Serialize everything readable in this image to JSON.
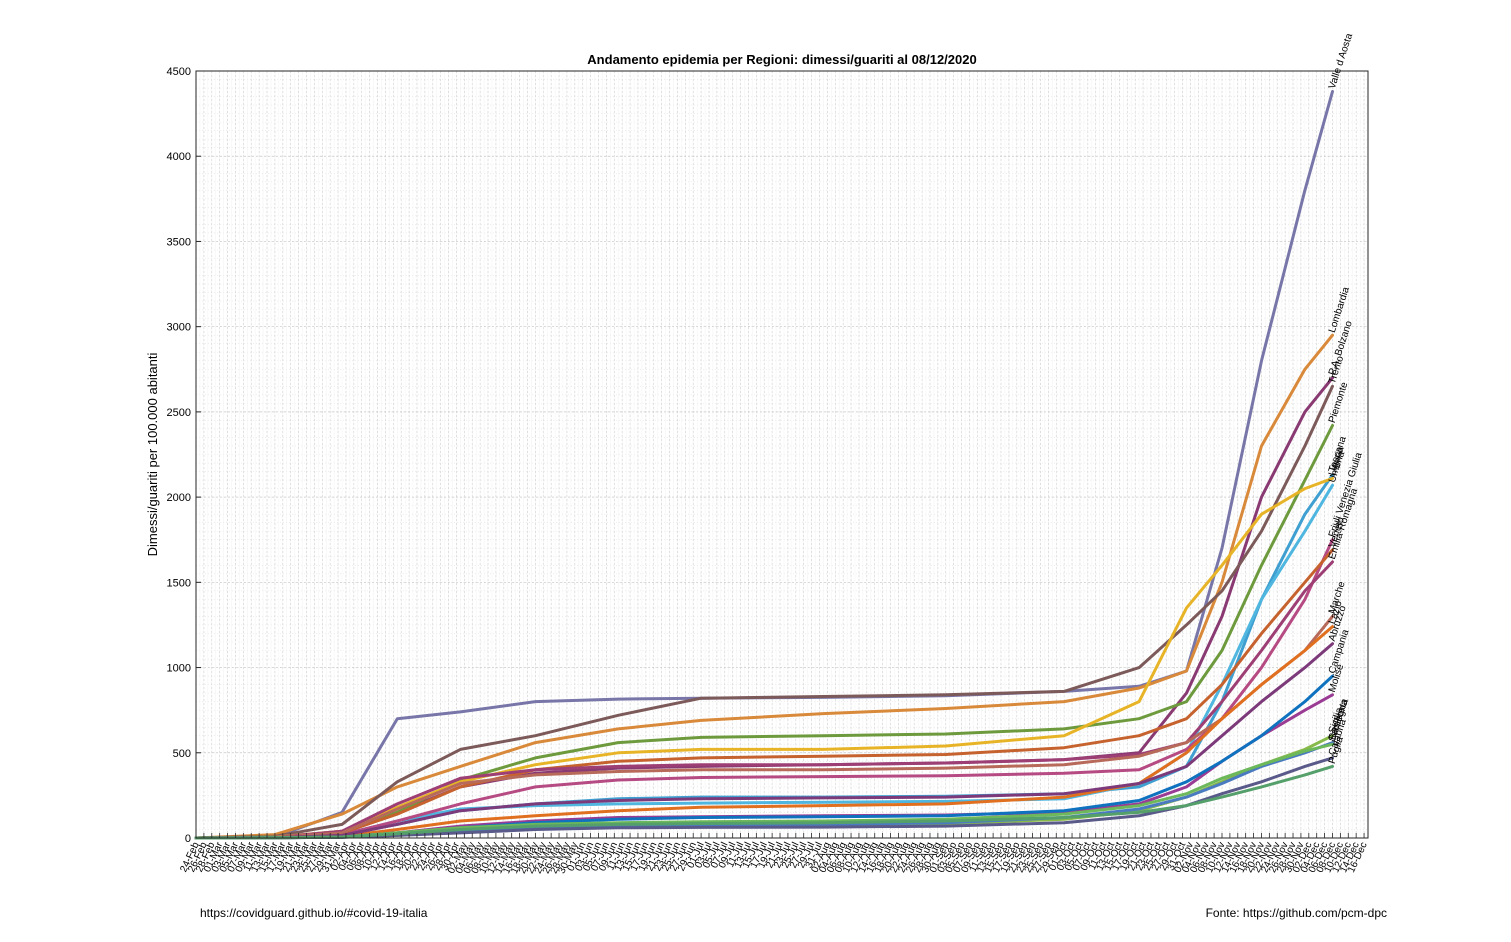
{
  "chart_data": {
    "type": "line",
    "title": "Andamento epidemia per Regioni: dimessi/guariti al 08/12/2020",
    "ylabel": "Dimessi/guariti per 100.000 abitanti",
    "xlabel": "",
    "ylim": [
      0,
      4500
    ],
    "yticks": [
      0,
      500,
      1000,
      1500,
      2000,
      2500,
      3000,
      3500,
      4000,
      4500
    ],
    "xlim": [
      "2020-02-24",
      "2020-12-17"
    ],
    "x_tick_format": "dd-Mmm",
    "x_tick_step_days": 2,
    "grid": true,
    "minor_grid": true,
    "x": [
      "2020-02-24",
      "2020-03-15",
      "2020-04-01",
      "2020-04-15",
      "2020-05-01",
      "2020-05-20",
      "2020-06-10",
      "2020-07-01",
      "2020-08-01",
      "2020-09-01",
      "2020-10-01",
      "2020-10-20",
      "2020-11-01",
      "2020-11-10",
      "2020-11-20",
      "2020-12-01",
      "2020-12-08"
    ],
    "series": [
      {
        "name": "Valle d Aosta",
        "color": "#7876a8",
        "values": [
          0,
          5,
          150,
          700,
          740,
          800,
          815,
          820,
          825,
          835,
          860,
          890,
          980,
          1700,
          2800,
          3800,
          4380
        ]
      },
      {
        "name": "Lombardia",
        "color": "#d9893a",
        "values": [
          0,
          20,
          140,
          300,
          420,
          560,
          640,
          690,
          730,
          760,
          800,
          880,
          980,
          1500,
          2300,
          2750,
          2950
        ]
      },
      {
        "name": "P.A. Bolzano",
        "color": "#8a3a72",
        "values": [
          0,
          5,
          40,
          150,
          300,
          380,
          410,
          420,
          430,
          440,
          460,
          500,
          850,
          1300,
          2000,
          2500,
          2700
        ]
      },
      {
        "name": "Trento",
        "color": "#7d5a5a",
        "values": [
          0,
          10,
          80,
          330,
          520,
          600,
          720,
          820,
          830,
          840,
          860,
          1000,
          1250,
          1450,
          1800,
          2300,
          2650
        ]
      },
      {
        "name": "Piemonte",
        "color": "#6e9a3e",
        "values": [
          0,
          5,
          30,
          150,
          340,
          470,
          560,
          590,
          600,
          610,
          640,
          700,
          800,
          1100,
          1600,
          2100,
          2420
        ]
      },
      {
        "name": "Toscana",
        "color": "#3f9fd0",
        "values": [
          0,
          3,
          20,
          80,
          160,
          200,
          230,
          240,
          240,
          245,
          260,
          300,
          420,
          800,
          1400,
          1900,
          2130
        ]
      },
      {
        "name": "Liguria",
        "color": "#e8b427",
        "values": [
          0,
          5,
          40,
          180,
          330,
          430,
          500,
          520,
          520,
          540,
          600,
          800,
          1350,
          1600,
          1900,
          2050,
          2110
        ]
      },
      {
        "name": "Umbria",
        "color": "#4fb6e0",
        "values": [
          0,
          3,
          20,
          100,
          170,
          190,
          200,
          205,
          210,
          215,
          230,
          320,
          500,
          900,
          1400,
          1800,
          2070
        ]
      },
      {
        "name": "Friuli Venezia Giulia",
        "color": "#b64a83",
        "values": [
          0,
          3,
          20,
          100,
          200,
          300,
          340,
          355,
          360,
          365,
          380,
          400,
          520,
          700,
          1000,
          1400,
          1750
        ]
      },
      {
        "name": "Veneto",
        "color": "#c6622e",
        "values": [
          0,
          3,
          30,
          140,
          300,
          400,
          450,
          470,
          480,
          490,
          530,
          600,
          700,
          900,
          1200,
          1500,
          1690
        ]
      },
      {
        "name": "Emilia-Romagna",
        "color": "#9d3e75",
        "values": [
          0,
          3,
          40,
          200,
          350,
          400,
          420,
          430,
          430,
          440,
          460,
          490,
          560,
          800,
          1100,
          1450,
          1620
        ]
      },
      {
        "name": "Marche",
        "color": "#b86a5a",
        "values": [
          0,
          3,
          30,
          170,
          320,
          370,
          390,
          400,
          400,
          410,
          430,
          480,
          560,
          700,
          900,
          1100,
          1300
        ]
      },
      {
        "name": "Lazio",
        "color": "#e0701f",
        "values": [
          0,
          2,
          10,
          50,
          100,
          130,
          160,
          180,
          190,
          200,
          240,
          320,
          500,
          700,
          900,
          1100,
          1240
        ]
      },
      {
        "name": "Abruzzo",
        "color": "#7c3a7a",
        "values": [
          0,
          2,
          15,
          80,
          160,
          200,
          220,
          230,
          235,
          240,
          260,
          320,
          420,
          600,
          800,
          1000,
          1140
        ]
      },
      {
        "name": "Molise",
        "color": "#9a3c93",
        "values": [
          0,
          1,
          5,
          30,
          70,
          100,
          120,
          125,
          130,
          135,
          150,
          200,
          300,
          450,
          600,
          750,
          840
        ]
      },
      {
        "name": "Campania",
        "color": "#0f72bf",
        "values": [
          0,
          1,
          5,
          30,
          60,
          90,
          110,
          120,
          125,
          130,
          160,
          220,
          330,
          450,
          600,
          800,
          950
        ]
      },
      {
        "name": "Sicilia",
        "color": "#88b94b",
        "values": [
          0,
          1,
          4,
          15,
          35,
          55,
          70,
          75,
          80,
          85,
          110,
          160,
          240,
          330,
          430,
          520,
          600
        ]
      },
      {
        "name": "Basilicata",
        "color": "#4a7ac0",
        "values": [
          0,
          1,
          4,
          20,
          40,
          60,
          70,
          75,
          80,
          90,
          120,
          170,
          240,
          320,
          420,
          500,
          560
        ]
      },
      {
        "name": "Sardegna",
        "color": "#6cb85a",
        "values": [
          0,
          1,
          6,
          30,
          60,
          80,
          90,
          95,
          100,
          110,
          140,
          190,
          260,
          350,
          430,
          510,
          550
        ]
      },
      {
        "name": "Calabria",
        "color": "#5a5a8a",
        "values": [
          0,
          1,
          4,
          15,
          30,
          50,
          60,
          62,
          64,
          70,
          90,
          130,
          190,
          260,
          330,
          420,
          470
        ]
      },
      {
        "name": "Puglia",
        "color": "#55a06a",
        "values": [
          0,
          1,
          5,
          25,
          50,
          70,
          80,
          85,
          90,
          100,
          120,
          150,
          190,
          240,
          300,
          370,
          420
        ]
      }
    ]
  },
  "footer": {
    "left": "https://covidguard.github.io/#covid-19-italia",
    "right": "Fonte: https://github.com/pcm-dpc"
  }
}
